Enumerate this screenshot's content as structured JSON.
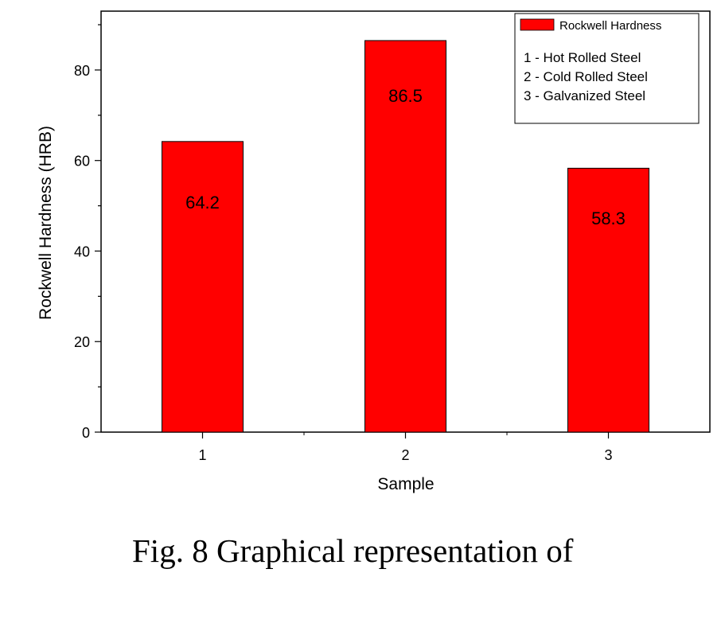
{
  "chart_data": {
    "type": "bar",
    "categories": [
      "1",
      "2",
      "3"
    ],
    "series": [
      {
        "name": "Rockwell Hardness",
        "values": [
          64.2,
          86.5,
          58.3
        ],
        "color": "#ff0000"
      }
    ],
    "data_labels": [
      "64.2",
      "86.5",
      "58.3"
    ],
    "xlabel": "Sample",
    "ylabel": "Rockwell Hardness (HRB)",
    "ylim": [
      0,
      93
    ],
    "xlim": [
      0.5,
      3.5
    ],
    "yticks": [
      0,
      20,
      40,
      60,
      80
    ],
    "grid": false,
    "legend_position": "top-right",
    "legend_notes": [
      "1 - Hot Rolled Steel",
      "2 - Cold Rolled Steel",
      "3 - Galvanized Steel"
    ]
  },
  "caption": "Fig. 8  Graphical representation of"
}
